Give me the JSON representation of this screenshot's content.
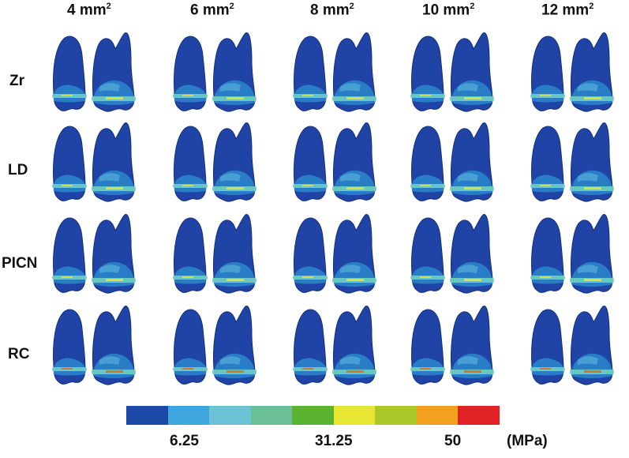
{
  "columns": [
    {
      "value": "4 mm",
      "exp": "2"
    },
    {
      "value": "6 mm",
      "exp": "2"
    },
    {
      "value": "8 mm",
      "exp": "2"
    },
    {
      "value": "10 mm",
      "exp": "2"
    },
    {
      "value": "12 mm",
      "exp": "2"
    }
  ],
  "rows": [
    "Zr",
    "LD",
    "PICN",
    "RC"
  ],
  "colors": {
    "tooth": "#1f44a6",
    "tooth_dark": "#14307c",
    "band": "#2e8fd0",
    "band_light": "#5bb8dc",
    "line": "#6fd0c0",
    "hot": "#e8e23a",
    "hotter": "#e06a1a"
  },
  "legend": {
    "swatches": [
      "#1a49a8",
      "#3ea6dc",
      "#6dc3d6",
      "#6bbf96",
      "#5bb332",
      "#e6e633",
      "#acc92c",
      "#f1a11e",
      "#df2223"
    ],
    "ticks": [
      "6.25",
      "31.25",
      "50"
    ],
    "unit": "(MPa)"
  }
}
